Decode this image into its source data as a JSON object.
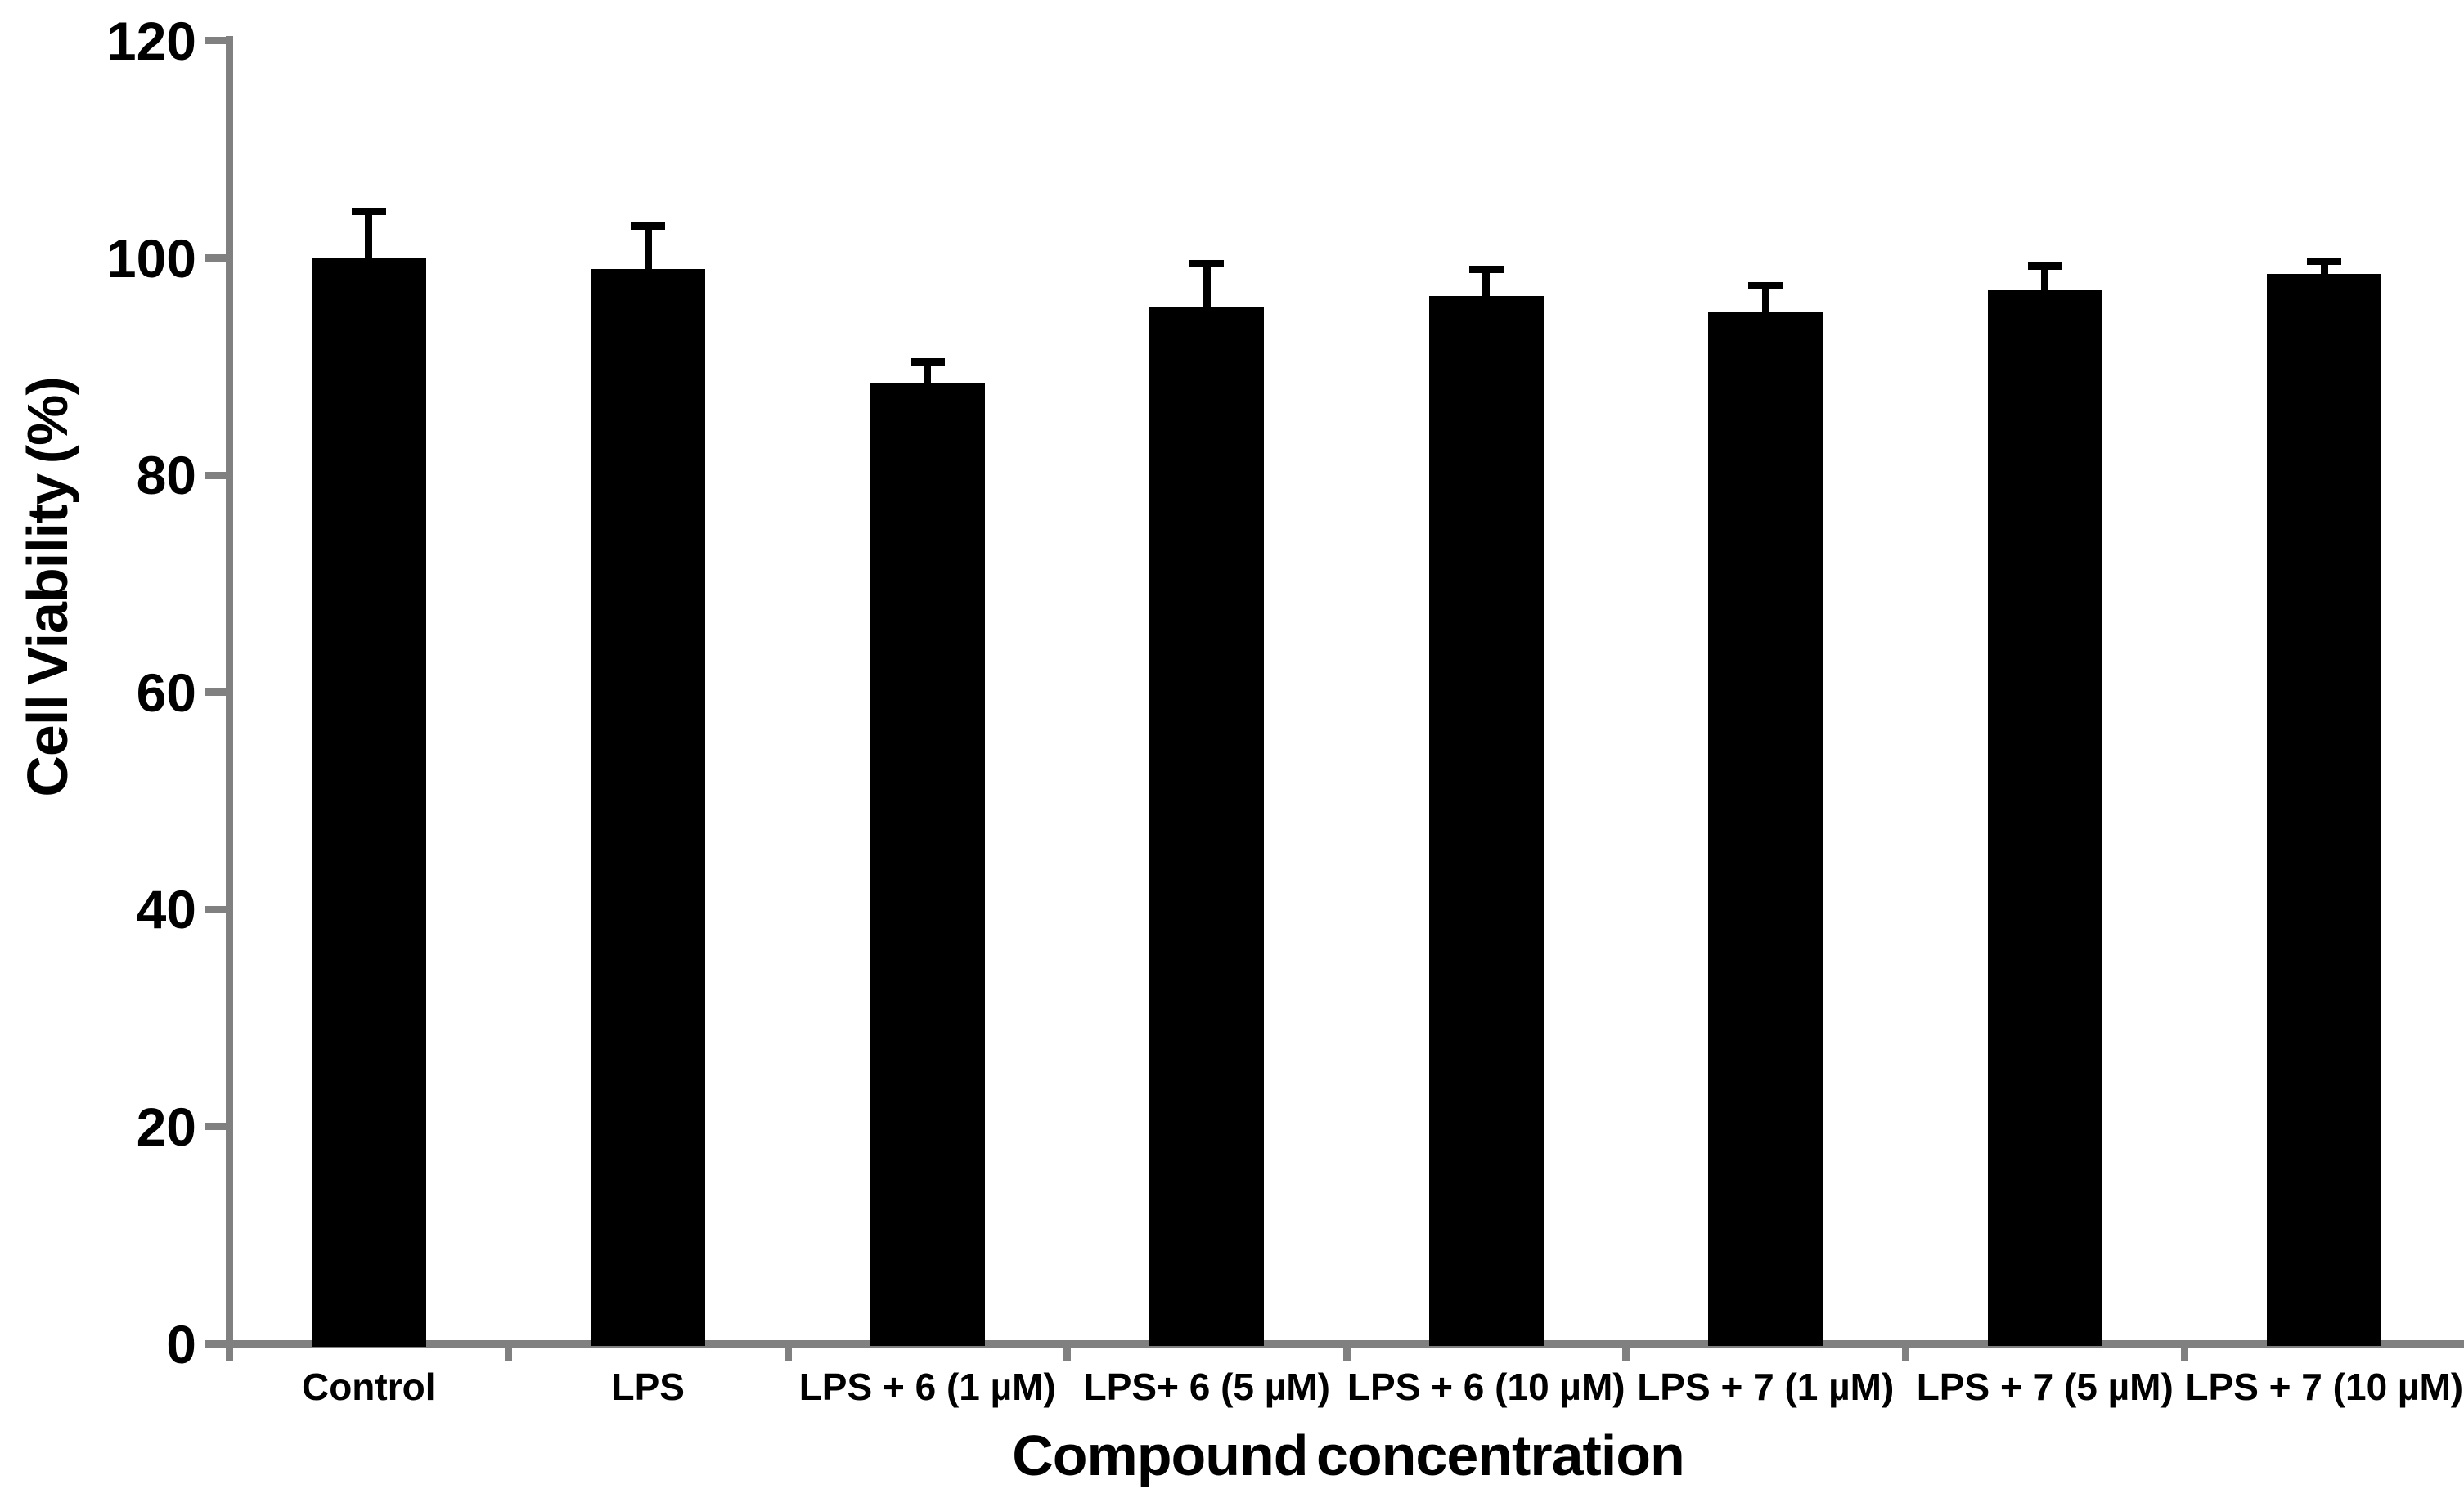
{
  "chart_data": {
    "type": "bar",
    "title": "",
    "xlabel": "Compound concentration",
    "ylabel": "Cell Viability (%)",
    "categories": [
      "Control",
      "LPS",
      "LPS + 6 (1 µM)",
      "LPS+ 6 (5 µM)",
      "LPS + 6 (10 µM)",
      "LPS + 7 (1 µM)",
      "LPS + 7 (5 µM)",
      "LPS + 7 (10 µM)"
    ],
    "values": [
      100,
      99,
      88.5,
      95.5,
      96.5,
      95,
      97,
      98.5
    ],
    "errors": [
      4.3,
      4.0,
      2.0,
      4.0,
      2.5,
      2.5,
      2.3,
      1.2
    ],
    "error_direction": "upper-only",
    "ylim": [
      0,
      120
    ],
    "yticks": [
      0,
      20,
      40,
      60,
      80,
      100,
      120
    ],
    "grid": false,
    "legend": null,
    "bar_color": "#000000",
    "axis_color": "#808080",
    "text_color": "#000000"
  }
}
